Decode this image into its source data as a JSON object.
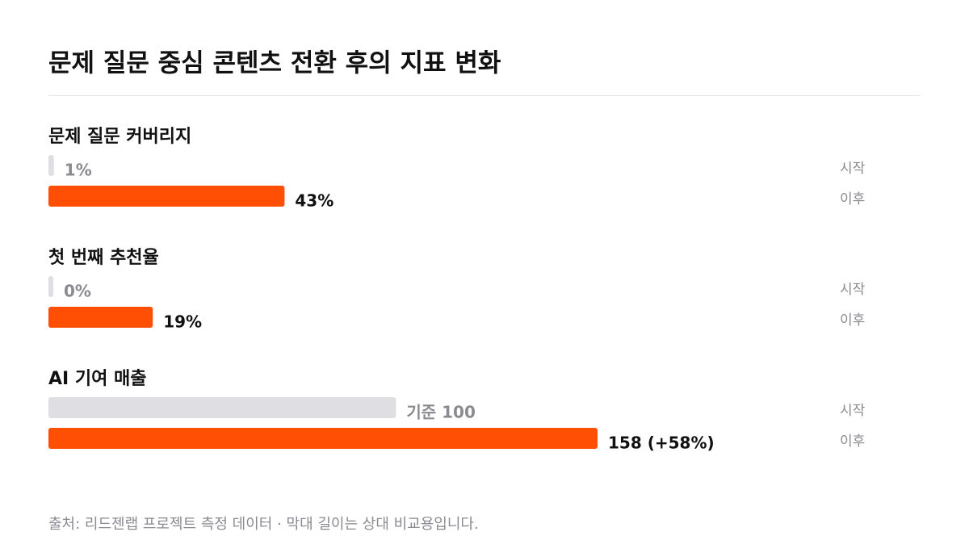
{
  "title": "문제 질문 중심 콘텐츠 전환 후의 지표 변화",
  "note": "출처: 리드젠랩 프로젝트 측정 데이터 · 막대 길이는 상대 비교용입니다.",
  "chart_data": [
    {
      "type": "bar",
      "title": "문제 질문 커버리지",
      "categories": [
        "시작",
        "이후"
      ],
      "values": [
        1,
        43
      ],
      "value_labels": [
        "1%",
        "43%"
      ],
      "colors": [
        "#dfdfe3",
        "#ff4f05"
      ],
      "xlim": [
        0,
        100
      ]
    },
    {
      "type": "bar",
      "title": "첫 번째 추천율",
      "categories": [
        "시작",
        "이후"
      ],
      "values": [
        0,
        19
      ],
      "value_labels": [
        "0%",
        "19%"
      ],
      "colors": [
        "#dfdfe3",
        "#ff4f05"
      ],
      "xlim": [
        0,
        100
      ]
    },
    {
      "type": "bar",
      "title": "AI 기여 매출",
      "categories": [
        "시작",
        "이후"
      ],
      "values": [
        100,
        158
      ],
      "value_labels": [
        "기준 100",
        "158 (+58%)"
      ],
      "colors": [
        "#dfdfe3",
        "#ff4f05"
      ],
      "xlim": [
        0,
        158
      ]
    }
  ]
}
